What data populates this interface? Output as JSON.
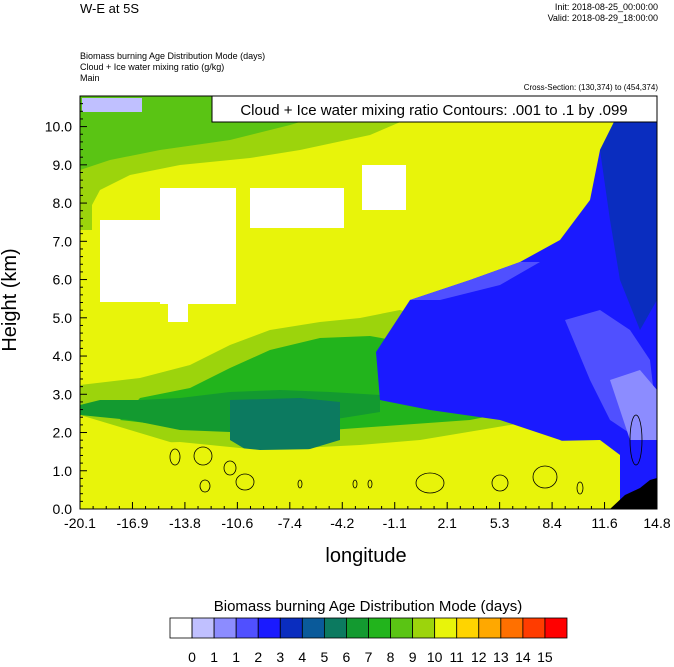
{
  "header": {
    "title": "W-E at 5S",
    "init": "Init: 2018-08-25_00:00:00",
    "valid": "Valid: 2018-08-29_18:00:00",
    "field_lines": [
      "Biomass burning Age Distribution Mode   (days)",
      "Cloud + Ice water mixing ratio   (g/kg)",
      "Main"
    ],
    "cross_section": "Cross-Section: (130,374) to (454,374)"
  },
  "chart_data": {
    "type": "heatmap",
    "title": "Cloud + Ice water mixing ratio Contours: .001 to .1 by .099",
    "xlabel": "longitude",
    "ylabel": "Height (km)",
    "xlim": [
      -20.1,
      14.8
    ],
    "ylim": [
      0.0,
      10.8
    ],
    "x_ticks": [
      "-20.1",
      "-16.9",
      "-13.8",
      "-10.6",
      "-7.4",
      "-4.2",
      "-1.1",
      "2.1",
      "5.3",
      "8.4",
      "11.6",
      "14.8"
    ],
    "y_ticks": [
      "0.0",
      "1.0",
      "2.0",
      "3.0",
      "4.0",
      "5.0",
      "6.0",
      "7.0",
      "8.0",
      "9.0",
      "10.0"
    ],
    "colorbar": {
      "title": "Biomass burning Age Distribution Mode  (days)",
      "labels": [
        "0",
        "1",
        "1",
        "2",
        "3",
        "4",
        "5",
        "6",
        "7",
        "8",
        "9",
        "10",
        "11",
        "12",
        "13",
        "14",
        "15"
      ],
      "colors": [
        "#ffffff",
        "#c0c0ff",
        "#8c8cff",
        "#5050ff",
        "#1a1aff",
        "#0a2dbf",
        "#0a5a9a",
        "#0c7a60",
        "#139a30",
        "#22b41c",
        "#5ac414",
        "#9cd40c",
        "#e8f40a",
        "#ffd400",
        "#ffa800",
        "#ff7000",
        "#ff3c00",
        "#ff0000"
      ]
    },
    "regions": [
      {
        "name": "upper-west-green",
        "value_days": 9,
        "x": [
          -20.1,
          -4.2
        ],
        "y": [
          8.6,
          10.8
        ]
      },
      {
        "name": "west-upper-yellow",
        "value_days": 11,
        "x": [
          -20.1,
          -1.1
        ],
        "y": [
          5.0,
          8.6
        ]
      },
      {
        "name": "top-left-lavender",
        "value_days": 1,
        "x": [
          -20.1,
          -16.9
        ],
        "y": [
          10.4,
          10.8
        ]
      },
      {
        "name": "white-block-1",
        "value_days": 0,
        "x": [
          -19.9,
          -14.8
        ],
        "y": [
          5.4,
          7.8
        ]
      },
      {
        "name": "white-block-2",
        "value_days": 0,
        "x": [
          -14.8,
          -11.0
        ],
        "y": [
          5.4,
          8.0
        ]
      },
      {
        "name": "white-block-3",
        "value_days": 0,
        "x": [
          -8.5,
          -5.2
        ],
        "y": [
          7.1,
          8.3
        ]
      },
      {
        "name": "white-block-4",
        "value_days": 0,
        "x": [
          -2.5,
          -1.7
        ],
        "y": [
          8.1,
          9.2
        ]
      },
      {
        "name": "mid-green-band",
        "value_days": 9,
        "x": [
          -20.1,
          5.3
        ],
        "y": [
          1.9,
          3.9
        ]
      },
      {
        "name": "dark-green-core",
        "value_days": 7,
        "x": [
          -15.5,
          -3.5
        ],
        "y": [
          2.0,
          3.0
        ]
      },
      {
        "name": "blue-plume",
        "value_days": 3,
        "x": [
          -1.6,
          14.8
        ],
        "y": [
          2.0,
          8.5
        ]
      },
      {
        "name": "surface-yellow",
        "value_days": 11,
        "x": [
          -20.1,
          14.8
        ],
        "y": [
          0.0,
          1.8
        ]
      }
    ],
    "contour_threshold": [
      0.001,
      0.1,
      0.099
    ]
  }
}
